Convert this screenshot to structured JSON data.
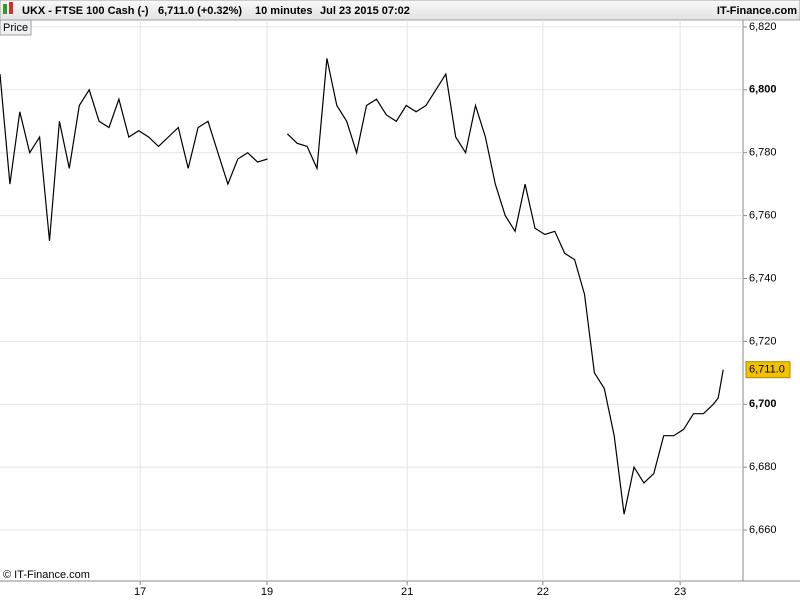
{
  "header": {
    "symbol": "UKX - FTSE 100 Cash (-)",
    "quote": "6,711.0 (+0.32%)",
    "interval": "10 minutes",
    "datetime": "Jul 23 2015 07:02",
    "brand": "IT-Finance.com"
  },
  "panel_label": "Price",
  "copyright": "© IT-Finance.com",
  "chart_data": {
    "type": "line",
    "x": [
      0,
      2,
      4,
      6,
      8,
      10,
      12,
      14,
      16,
      18,
      20,
      22,
      24,
      26,
      28,
      30,
      32,
      34,
      36,
      38,
      40,
      42,
      44,
      46,
      48,
      50,
      52,
      54,
      56,
      58,
      60,
      62,
      64,
      66,
      68,
      70,
      72,
      74,
      76,
      78,
      80,
      82,
      84,
      86,
      88,
      90,
      92,
      94,
      96,
      98,
      100,
      102,
      104,
      106,
      108,
      110,
      112,
      114,
      116,
      118,
      120,
      122,
      124,
      126,
      128,
      130,
      132,
      134,
      136,
      138,
      140,
      142,
      144,
      145,
      146
    ],
    "series": [
      {
        "name": "Price",
        "color": "#000000",
        "values": [
          6805,
          6770,
          6793,
          6780,
          6785,
          6752,
          6790,
          6775,
          6795,
          6800,
          6790,
          6788,
          6797,
          6785,
          6787,
          6785,
          6782,
          6785,
          6788,
          6775,
          6788,
          6790,
          6780,
          6770,
          6778,
          6780,
          6777,
          6778,
          null,
          6786,
          6783,
          6782,
          6775,
          6810,
          6795,
          6790,
          6780,
          6795,
          6797,
          6792,
          6790,
          6795,
          6793,
          6795,
          6800,
          6805,
          6785,
          6780,
          6795,
          6785,
          6770,
          6760,
          6755,
          6770,
          6756,
          6754,
          6755,
          6748,
          6746,
          6735,
          6710,
          6705,
          6690,
          6665,
          6680,
          6675,
          6678,
          6690,
          6690,
          6692,
          6697,
          6697,
          6700,
          6702,
          6711
        ]
      }
    ],
    "xlim": [
      0,
      150
    ],
    "xticks": [
      {
        "value": 28.3,
        "label": "17"
      },
      {
        "value": 53.9,
        "label": "19"
      },
      {
        "value": 82.2,
        "label": "21"
      },
      {
        "value": 109.6,
        "label": "22"
      },
      {
        "value": 137.3,
        "label": "23"
      }
    ],
    "ylim": [
      6643.8,
      6822.2
    ],
    "yticks": [
      {
        "value": 6660,
        "label": "6,660"
      },
      {
        "value": 6680,
        "label": "6,680"
      },
      {
        "value": 6700,
        "label": "6,700"
      },
      {
        "value": 6720,
        "label": "6,720"
      },
      {
        "value": 6740,
        "label": "6,740"
      },
      {
        "value": 6760,
        "label": "6,760"
      },
      {
        "value": 6780,
        "label": "6,780"
      },
      {
        "value": 6800,
        "label": "6,800"
      },
      {
        "value": 6820,
        "label": "6,820"
      }
    ],
    "grid": true,
    "last_price": {
      "value": 6711,
      "label": "6,711.0",
      "color": "#f2c200"
    }
  }
}
